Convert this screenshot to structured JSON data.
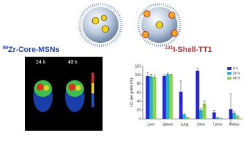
{
  "illustration": {
    "core_label": {
      "isotope": "89",
      "text": "Zr-Core-MSNs"
    },
    "shell_label": {
      "isotope": "131",
      "text": "I-Shell-TT1"
    },
    "pet_labels": [
      "24 h",
      "48 h"
    ]
  },
  "chart_data": {
    "type": "bar",
    "y_label": "I.D. per gram (%)",
    "categories": [
      "Liver",
      "Spleen",
      "Lung",
      "Urine",
      "Tumor",
      "Kidney"
    ],
    "series": [
      {
        "name": "6 h",
        "color": "#2727d8",
        "values": [
          98,
          98,
          62,
          110,
          15,
          22
        ],
        "errors": [
          8,
          3,
          25,
          6,
          5,
          35
        ]
      },
      {
        "name": "24 h",
        "color": "#26b5c6",
        "values": [
          97,
          102,
          10,
          20,
          3,
          13
        ],
        "errors": [
          5,
          3,
          2,
          4,
          1,
          3
        ]
      },
      {
        "name": "48 h",
        "color": "#8ed34c",
        "values": [
          96,
          100,
          3,
          35,
          1,
          6
        ],
        "errors": [
          4,
          2,
          1,
          6,
          0.5,
          2
        ]
      }
    ],
    "ylim": [
      0,
      120
    ],
    "yticks": [
      0,
      20,
      40,
      60,
      80,
      100,
      120
    ],
    "legend": "upper right"
  }
}
